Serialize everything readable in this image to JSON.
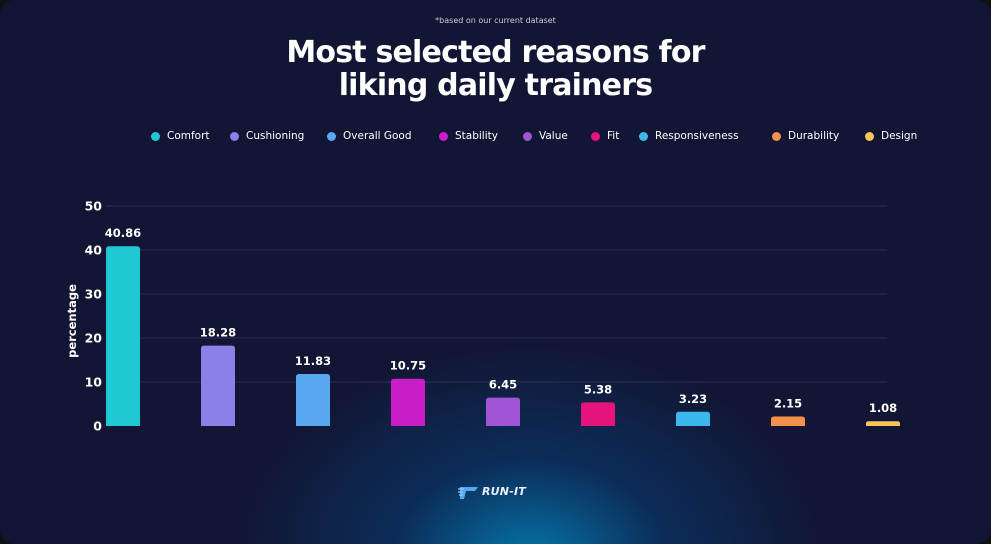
{
  "note": "*based on our current dataset",
  "title_line1": "Most selected reasons for",
  "title_line2": "liking daily trainers",
  "logo_text": "RUN-IT",
  "colors": {
    "background": "#121533",
    "glow": "#0096d2",
    "gridline": "#2a3050",
    "label_text": "#ffffff"
  },
  "chart_data": {
    "type": "bar",
    "categories": [
      "Comfort",
      "Cushioning",
      "Overall Good",
      "Stability",
      "Value",
      "Fit",
      "Responsiveness",
      "Durability",
      "Design"
    ],
    "values": [
      40.86,
      18.28,
      11.83,
      10.75,
      6.45,
      5.38,
      3.23,
      2.15,
      1.08
    ],
    "value_labels": [
      "40.86",
      "18.28",
      "11.83",
      "10.75",
      "6.45",
      "5.38",
      "3.23",
      "2.15",
      "1.08"
    ],
    "colors": [
      "#1ec8d4",
      "#8a80e6",
      "#5aa8f0",
      "#c81ec8",
      "#a055d6",
      "#e5147a",
      "#3cb8ec",
      "#f5924a",
      "#f8c45a"
    ],
    "ylabel": "percentage",
    "xlabel": "",
    "ylim": [
      0,
      50
    ],
    "yticks": [
      "0",
      "10",
      "20",
      "30",
      "40",
      "50"
    ],
    "grid": true,
    "legend_position": "top"
  }
}
